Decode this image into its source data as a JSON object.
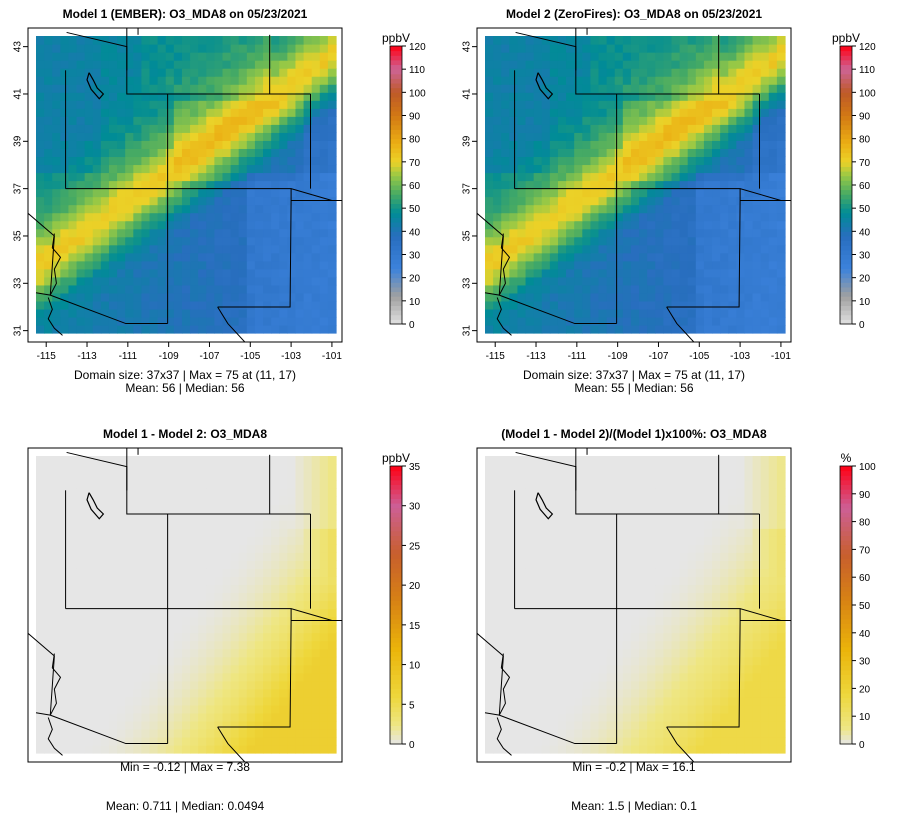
{
  "chart_data": [
    {
      "type": "heatmap",
      "title": "Model 1 (EMBER): O3_MDA8 on 05/23/2021",
      "field": "conc",
      "stats": [
        "Domain size: 37x37 | Max = 75 at (11, 17)",
        "Mean: 56 |  Median: 56"
      ],
      "x_ticks": [
        "-115",
        "-113",
        "-111",
        "-109",
        "-107",
        "-105",
        "-103",
        "-101"
      ],
      "y_ticks": [
        "31",
        "33",
        "35",
        "37",
        "39",
        "41",
        "43"
      ],
      "xlim": [
        -115,
        -101
      ],
      "ylim": [
        31,
        43
      ],
      "grid_size": [
        37,
        37
      ],
      "max": 75,
      "max_location": [
        11,
        17
      ],
      "mean": 56,
      "median": 56,
      "colorbar": {
        "unit": "ppbV",
        "ticks": [
          "0",
          "10",
          "20",
          "30",
          "40",
          "50",
          "60",
          "70",
          "80",
          "90",
          "100",
          "110",
          "120"
        ],
        "range": [
          0,
          120
        ]
      }
    },
    {
      "type": "heatmap",
      "title": "Model 2 (ZeroFires): O3_MDA8 on 05/23/2021",
      "field": "conc",
      "stats": [
        "Domain size: 37x37 | Max = 75 at (11, 17)",
        "Mean: 55 |  Median: 56"
      ],
      "x_ticks": [
        "-115",
        "-113",
        "-111",
        "-109",
        "-107",
        "-105",
        "-103",
        "-101"
      ],
      "y_ticks": [
        "31",
        "33",
        "35",
        "37",
        "39",
        "41",
        "43"
      ],
      "xlim": [
        -115,
        -101
      ],
      "ylim": [
        31,
        43
      ],
      "grid_size": [
        37,
        37
      ],
      "max": 75,
      "max_location": [
        11,
        17
      ],
      "mean": 55,
      "median": 56,
      "colorbar": {
        "unit": "ppbV",
        "ticks": [
          "0",
          "10",
          "20",
          "30",
          "40",
          "50",
          "60",
          "70",
          "80",
          "90",
          "100",
          "110",
          "120"
        ],
        "range": [
          0,
          120
        ]
      }
    },
    {
      "type": "heatmap",
      "title": "Model 1 - Model 2: O3_MDA8",
      "field": "diff",
      "stats": [
        "Min = -0.12 | Max = 7.38",
        "Mean: 0.711 |  Median: 0.0494"
      ],
      "min": -0.12,
      "max": 7.38,
      "mean": 0.711,
      "median": 0.0494,
      "colorbar": {
        "unit": "ppbV",
        "ticks": [
          "0",
          "5",
          "10",
          "15",
          "20",
          "25",
          "30",
          "35"
        ],
        "range": [
          0,
          35
        ]
      }
    },
    {
      "type": "heatmap",
      "title": "(Model 1 - Model 2)/(Model 1)x100%: O3_MDA8",
      "field": "pct",
      "stats": [
        "Min = -0.2 | Max = 16.1",
        "Mean: 1.5 |  Median: 0.1"
      ],
      "min": -0.2,
      "max": 16.1,
      "mean": 1.5,
      "median": 0.1,
      "colorbar": {
        "unit": "%",
        "ticks": [
          "0",
          "10",
          "20",
          "30",
          "40",
          "50",
          "60",
          "70",
          "80",
          "90",
          "100"
        ],
        "range": [
          0,
          100
        ]
      }
    }
  ]
}
